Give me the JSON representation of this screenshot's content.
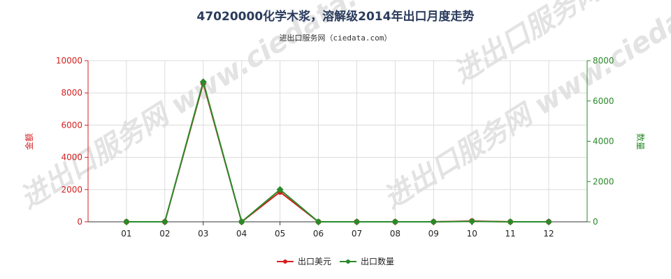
{
  "chart_data": {
    "type": "line",
    "title": "47020000化学木浆，溶解级2014年出口月度走势",
    "subtitle": "进出口服务网（ciedata.com）",
    "watermark": "进出口服务网 www.ciedata.com",
    "categories": [
      "01",
      "02",
      "03",
      "04",
      "05",
      "06",
      "07",
      "08",
      "09",
      "10",
      "11",
      "12"
    ],
    "y_left": {
      "label": "金额",
      "ylim": [
        0,
        10000
      ],
      "ticks": [
        "0",
        "2000",
        "4000",
        "6000",
        "8000",
        "10000"
      ]
    },
    "y_right": {
      "label": "数量",
      "ylim": [
        0,
        8000
      ],
      "ticks": [
        "0",
        "2000",
        "4000",
        "6000",
        "8000"
      ]
    },
    "series": [
      {
        "name": "出口美元",
        "axis": "left",
        "color": "#d42020",
        "values": [
          0,
          0,
          8600,
          0,
          1850,
          0,
          0,
          0,
          0,
          50,
          0,
          0
        ]
      },
      {
        "name": "出口数量",
        "axis": "right",
        "color": "#2a8a2a",
        "values": [
          0,
          0,
          6950,
          0,
          1600,
          0,
          0,
          0,
          0,
          20,
          0,
          0
        ]
      }
    ],
    "grid": true,
    "legend_position": "bottom-center"
  }
}
